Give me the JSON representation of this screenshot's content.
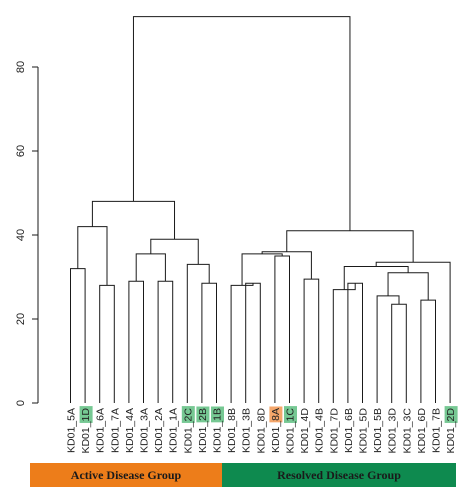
{
  "chart_data": {
    "type": "dendrogram",
    "ylim": [
      0,
      95
    ],
    "y_ticks": [
      0,
      20,
      40,
      60,
      80
    ],
    "leaves": [
      {
        "id": "KD01_5A",
        "prefix": "KD01_",
        "tag": "5A",
        "highlight": ""
      },
      {
        "id": "KD01_1D",
        "prefix": "KD01_",
        "tag": "1D",
        "highlight": "green"
      },
      {
        "id": "KD01_6A",
        "prefix": "KD01_",
        "tag": "6A",
        "highlight": ""
      },
      {
        "id": "KD01_7A",
        "prefix": "KD01_",
        "tag": "7A",
        "highlight": ""
      },
      {
        "id": "KD01_4A",
        "prefix": "KD01_",
        "tag": "4A",
        "highlight": ""
      },
      {
        "id": "KD01_3A",
        "prefix": "KD01_",
        "tag": "3A",
        "highlight": ""
      },
      {
        "id": "KD01_2A",
        "prefix": "KD01_",
        "tag": "2A",
        "highlight": ""
      },
      {
        "id": "KD01_1A",
        "prefix": "KD01_",
        "tag": "1A",
        "highlight": ""
      },
      {
        "id": "KD01_2C",
        "prefix": "KD01_",
        "tag": "2C",
        "highlight": "green"
      },
      {
        "id": "KD01_2B",
        "prefix": "KD01_",
        "tag": "2B",
        "highlight": "green"
      },
      {
        "id": "KD01_1B",
        "prefix": "KD01_",
        "tag": "1B",
        "highlight": "green"
      },
      {
        "id": "KD01_8B",
        "prefix": "KD01_",
        "tag": "8B",
        "highlight": ""
      },
      {
        "id": "KD01_3B",
        "prefix": "KD01_",
        "tag": "3B",
        "highlight": ""
      },
      {
        "id": "KD01_8D",
        "prefix": "KD01_",
        "tag": "8D",
        "highlight": ""
      },
      {
        "id": "KD01_8A",
        "prefix": "KD01_",
        "tag": "8A",
        "highlight": "orange"
      },
      {
        "id": "KD01_1C",
        "prefix": "KD01_",
        "tag": "1C",
        "highlight": "green"
      },
      {
        "id": "KD01_4D",
        "prefix": "KD01_",
        "tag": "4D",
        "highlight": ""
      },
      {
        "id": "KD01_4B",
        "prefix": "KD01_",
        "tag": "4B",
        "highlight": ""
      },
      {
        "id": "KD01_7D",
        "prefix": "KD01_",
        "tag": "7D",
        "highlight": ""
      },
      {
        "id": "KD01_6B",
        "prefix": "KD01_",
        "tag": "6B",
        "highlight": ""
      },
      {
        "id": "KD01_5D",
        "prefix": "KD01_",
        "tag": "5D",
        "highlight": ""
      },
      {
        "id": "KD01_5B",
        "prefix": "KD01_",
        "tag": "5B",
        "highlight": ""
      },
      {
        "id": "KD01_3D",
        "prefix": "KD01_",
        "tag": "3D",
        "highlight": ""
      },
      {
        "id": "KD01_3C",
        "prefix": "KD01_",
        "tag": "3C",
        "highlight": ""
      },
      {
        "id": "KD01_6D",
        "prefix": "KD01_",
        "tag": "6D",
        "highlight": ""
      },
      {
        "id": "KD01_7B",
        "prefix": "KD01_",
        "tag": "7B",
        "highlight": ""
      },
      {
        "id": "KD01_2D",
        "prefix": "KD01_",
        "tag": "2D",
        "highlight": "green"
      }
    ],
    "merges": [
      {
        "a": "KD01_5A",
        "b": "KD01_1D",
        "height": 32.0
      },
      {
        "a": "KD01_6A",
        "b": "KD01_7A",
        "height": 28.0
      },
      {
        "a": "m1",
        "b": "m2",
        "height": 42.0
      },
      {
        "a": "KD01_4A",
        "b": "KD01_3A",
        "height": 29.0
      },
      {
        "a": "KD01_2A",
        "b": "KD01_1A",
        "height": 29.0
      },
      {
        "a": "m4",
        "b": "m5",
        "height": 35.5
      },
      {
        "a": "KD01_2B",
        "b": "KD01_1B",
        "height": 28.5
      },
      {
        "a": "KD01_2C",
        "b": "m7",
        "height": 33.0
      },
      {
        "a": "m6",
        "b": "m8",
        "height": 39.0
      },
      {
        "a": "m3",
        "b": "m9",
        "height": 48.0
      },
      {
        "a": "KD01_3B",
        "b": "KD01_8D",
        "height": 28.5
      },
      {
        "a": "KD01_8B",
        "b": "m11",
        "height": 28.0
      },
      {
        "a": "KD01_8A",
        "b": "KD01_1C",
        "height": 35.0
      },
      {
        "a": "m12",
        "b": "m13",
        "height": 35.5
      },
      {
        "a": "KD01_4D",
        "b": "KD01_4B",
        "height": 29.5
      },
      {
        "a": "m14",
        "b": "m15",
        "height": 36.0
      },
      {
        "a": "KD01_6B",
        "b": "KD01_5D",
        "height": 28.5
      },
      {
        "a": "KD01_7D",
        "b": "m17",
        "height": 27.0
      },
      {
        "a": "KD01_3D",
        "b": "KD01_3C",
        "height": 23.5
      },
      {
        "a": "KD01_5B",
        "b": "m19",
        "height": 25.5
      },
      {
        "a": "KD01_6D",
        "b": "KD01_7B",
        "height": 24.5
      },
      {
        "a": "m20",
        "b": "m21",
        "height": 31.0
      },
      {
        "a": "m18",
        "b": "m22",
        "height": 32.5
      },
      {
        "a": "m23",
        "b": "KD01_2D",
        "height": 33.5
      },
      {
        "a": "m16",
        "b": "m24",
        "height": 41.0
      },
      {
        "a": "m10",
        "b": "m25",
        "height": 92.0
      }
    ],
    "groups": [
      {
        "label": "Active Disease Group",
        "color": "#ed7d1a",
        "first_leaf": 0,
        "last_leaf": 10
      },
      {
        "label": "Resolved Disease Group",
        "color": "#0e8a4f",
        "first_leaf": 11,
        "last_leaf": 26
      }
    ],
    "highlight_colors": {
      "green": "#76c893",
      "orange": "#f4a66a"
    },
    "line_color": "#1a1a1a"
  }
}
